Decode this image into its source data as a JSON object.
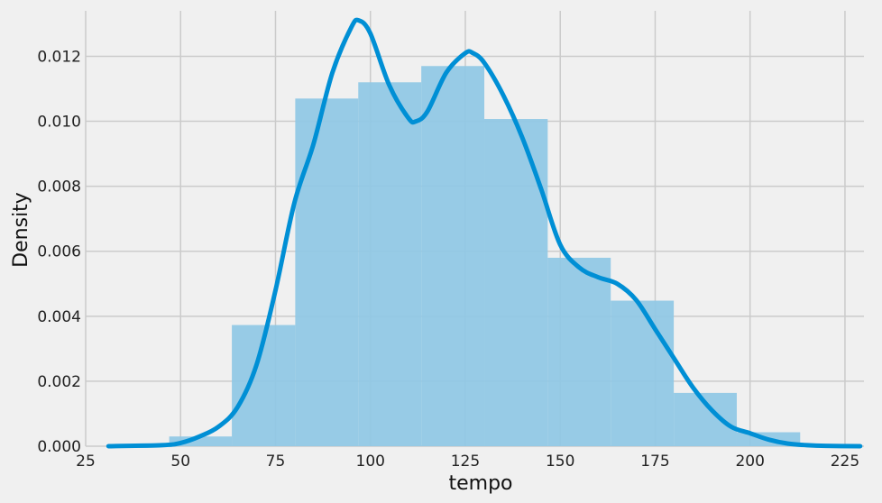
{
  "chart_data": {
    "type": "histogram-kde",
    "xlabel": "tempo",
    "ylabel": "Density",
    "xlim": [
      25,
      230
    ],
    "ylim": [
      0,
      0.0134
    ],
    "xticks": [
      25,
      50,
      75,
      100,
      125,
      150,
      175,
      200,
      225
    ],
    "yticks": [
      0.0,
      0.002,
      0.004,
      0.006,
      0.008,
      0.01,
      0.012
    ],
    "ytick_labels": [
      "0.000",
      "0.002",
      "0.004",
      "0.006",
      "0.008",
      "0.010",
      "0.012"
    ],
    "grid": true,
    "colors": {
      "background": "#f0f0f0",
      "grid": "#cbcbcb",
      "bar": "#8fc8e5",
      "kde": "#008fd5"
    },
    "bins": [
      {
        "x0": 47,
        "x1": 63.5,
        "density": 0.0003
      },
      {
        "x0": 63.5,
        "x1": 80.2,
        "density": 0.00373
      },
      {
        "x0": 80.2,
        "x1": 96.8,
        "density": 0.0107
      },
      {
        "x0": 96.8,
        "x1": 113.4,
        "density": 0.0112
      },
      {
        "x0": 113.4,
        "x1": 130,
        "density": 0.0117
      },
      {
        "x0": 130,
        "x1": 146.7,
        "density": 0.01007
      },
      {
        "x0": 146.7,
        "x1": 163.3,
        "density": 0.0058
      },
      {
        "x0": 163.3,
        "x1": 179.9,
        "density": 0.00448
      },
      {
        "x0": 179.9,
        "x1": 196.5,
        "density": 0.00164
      },
      {
        "x0": 196.5,
        "x1": 213.2,
        "density": 0.00043
      }
    ],
    "kde": {
      "x": [
        31,
        45,
        50,
        55,
        60,
        65,
        70,
        75,
        80,
        85,
        90,
        95,
        97,
        100,
        105,
        110,
        112,
        115,
        120,
        125,
        127,
        130,
        135,
        140,
        145,
        150,
        155,
        160,
        165,
        170,
        175,
        180,
        185,
        190,
        195,
        200,
        205,
        210,
        215,
        220,
        229
      ],
      "y": [
        0.0,
        3e-05,
        0.0001,
        0.0003,
        0.0006,
        0.0012,
        0.0025,
        0.0048,
        0.0075,
        0.0093,
        0.0115,
        0.0129,
        0.0131,
        0.0127,
        0.0111,
        0.0101,
        0.01,
        0.0103,
        0.0115,
        0.0121,
        0.0121,
        0.0118,
        0.0108,
        0.0095,
        0.0079,
        0.0062,
        0.0055,
        0.0052,
        0.005,
        0.0045,
        0.0036,
        0.0027,
        0.0018,
        0.0011,
        0.0006,
        0.0004,
        0.0002,
        8e-05,
        3e-05,
        1e-05,
        0.0
      ]
    }
  }
}
